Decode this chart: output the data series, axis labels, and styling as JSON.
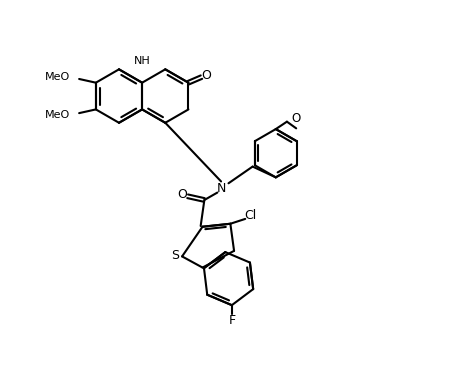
{
  "background_color": "#ffffff",
  "line_color": "#000000",
  "line_width": 1.5,
  "figsize": [
    4.57,
    3.74
  ],
  "dpi": 100,
  "labels": {
    "NH": {
      "text": "NH",
      "fontsize": 8
    },
    "O_quinoline": {
      "text": "O",
      "fontsize": 8
    },
    "O_amide": {
      "text": "O",
      "fontsize": 8
    },
    "N_central": {
      "text": "N",
      "fontsize": 8
    },
    "S_thiophene": {
      "text": "S",
      "fontsize": 8
    },
    "Cl": {
      "text": "Cl",
      "fontsize": 8
    },
    "F": {
      "text": "F",
      "fontsize": 8
    },
    "MeO_top": {
      "text": "MeO",
      "fontsize": 8
    },
    "MeO_mid": {
      "text": "MeO",
      "fontsize": 8
    },
    "MeO_para": {
      "text": "O",
      "fontsize": 8
    }
  }
}
